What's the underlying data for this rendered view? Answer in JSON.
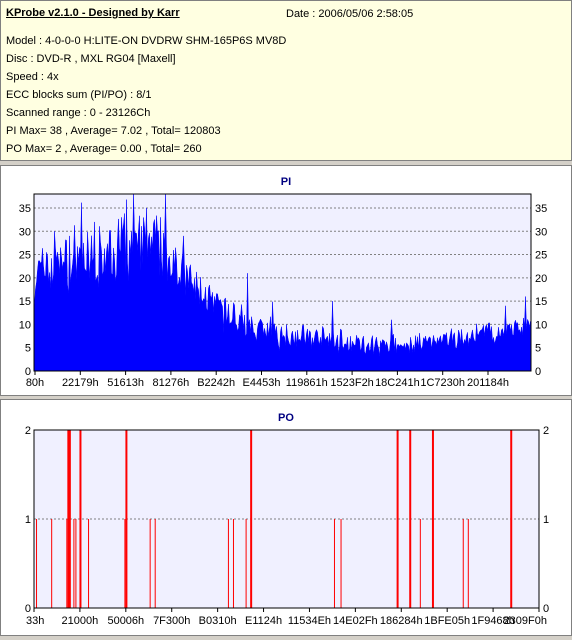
{
  "header": {
    "title": "KProbe v2.1.0 - Designed by Karr",
    "date": "Date : 2006/05/06 2:58:05",
    "lines": [
      "Model : 4-0-0-0 H:LITE-ON DVDRW SHM-165P6S MV8D",
      "Disc : DVD-R , MXL RG04 [Maxell]",
      "Speed : 4x",
      "ECC blocks sum (PI/PO) : 8/1",
      "Scanned range : 0 - 23126Ch",
      "PI Max= 38 , Average= 7.02 , Total= 120803",
      "PO Max= 2 , Average= 0.00 , Total= 260"
    ]
  },
  "colors": {
    "pi_fill": "#0000ff",
    "po_line": "#ff0000",
    "plot_bg": "#f0f0ff",
    "grid": "#808080"
  },
  "chart_data": [
    {
      "type": "area",
      "title": "PI",
      "ylim": [
        0,
        38
      ],
      "yticks": [
        0,
        5,
        10,
        15,
        20,
        25,
        30,
        35
      ],
      "xticklabels": [
        "80h",
        "22179h",
        "51613h",
        "81276h",
        "B2242h",
        "E4453h",
        "119861h",
        "1523F2h",
        "18C241h",
        "1C7230h",
        "201184h"
      ],
      "profile": [
        {
          "pos": 0.0,
          "mean": 21,
          "amp": 7
        },
        {
          "pos": 0.08,
          "mean": 23,
          "amp": 8
        },
        {
          "pos": 0.16,
          "mean": 25,
          "amp": 9
        },
        {
          "pos": 0.22,
          "mean": 27,
          "amp": 9
        },
        {
          "pos": 0.27,
          "mean": 25,
          "amp": 8
        },
        {
          "pos": 0.32,
          "mean": 18,
          "amp": 6
        },
        {
          "pos": 0.4,
          "mean": 11,
          "amp": 5
        },
        {
          "pos": 0.5,
          "mean": 8,
          "amp": 4
        },
        {
          "pos": 0.6,
          "mean": 6.5,
          "amp": 3
        },
        {
          "pos": 0.7,
          "mean": 5.5,
          "amp": 2.5
        },
        {
          "pos": 0.8,
          "mean": 6,
          "amp": 3
        },
        {
          "pos": 0.9,
          "mean": 7.5,
          "amp": 3
        },
        {
          "pos": 1.0,
          "mean": 10,
          "amp": 3
        }
      ],
      "peaks": [
        {
          "pos": 0.04,
          "value": 30
        },
        {
          "pos": 0.07,
          "value": 29
        },
        {
          "pos": 0.12,
          "value": 32
        },
        {
          "pos": 0.175,
          "value": 33
        },
        {
          "pos": 0.2,
          "value": 38
        },
        {
          "pos": 0.225,
          "value": 35
        },
        {
          "pos": 0.255,
          "value": 33
        },
        {
          "pos": 0.3,
          "value": 29
        },
        {
          "pos": 0.43,
          "value": 21
        },
        {
          "pos": 0.6,
          "value": 15
        },
        {
          "pos": 0.72,
          "value": 11
        },
        {
          "pos": 0.95,
          "value": 14
        },
        {
          "pos": 0.99,
          "value": 16
        }
      ]
    },
    {
      "type": "bar",
      "title": "PO",
      "ylim": [
        0,
        2
      ],
      "yticks": [
        0,
        1,
        2
      ],
      "xticklabels": [
        "33h",
        "21000h",
        "50006h",
        "7F300h",
        "B0310h",
        "E1124h",
        "11534Eh",
        "14E02Fh",
        "186284h",
        "1BFE05h",
        "1F9468h",
        "2309F0h"
      ],
      "events": [
        {
          "pos": 0.005,
          "value": 1
        },
        {
          "pos": 0.035,
          "value": 1
        },
        {
          "pos": 0.065,
          "value": 1
        },
        {
          "pos": 0.068,
          "value": 2
        },
        {
          "pos": 0.071,
          "value": 2
        },
        {
          "pos": 0.079,
          "value": 1
        },
        {
          "pos": 0.083,
          "value": 1
        },
        {
          "pos": 0.092,
          "value": 2
        },
        {
          "pos": 0.108,
          "value": 1
        },
        {
          "pos": 0.18,
          "value": 1
        },
        {
          "pos": 0.183,
          "value": 2
        },
        {
          "pos": 0.23,
          "value": 1
        },
        {
          "pos": 0.24,
          "value": 1
        },
        {
          "pos": 0.385,
          "value": 1
        },
        {
          "pos": 0.395,
          "value": 1
        },
        {
          "pos": 0.42,
          "value": 1
        },
        {
          "pos": 0.43,
          "value": 2
        },
        {
          "pos": 0.595,
          "value": 1
        },
        {
          "pos": 0.608,
          "value": 1
        },
        {
          "pos": 0.72,
          "value": 2
        },
        {
          "pos": 0.745,
          "value": 2
        },
        {
          "pos": 0.765,
          "value": 1
        },
        {
          "pos": 0.79,
          "value": 2
        },
        {
          "pos": 0.85,
          "value": 1
        },
        {
          "pos": 0.86,
          "value": 1
        },
        {
          "pos": 0.945,
          "value": 2
        }
      ]
    }
  ]
}
